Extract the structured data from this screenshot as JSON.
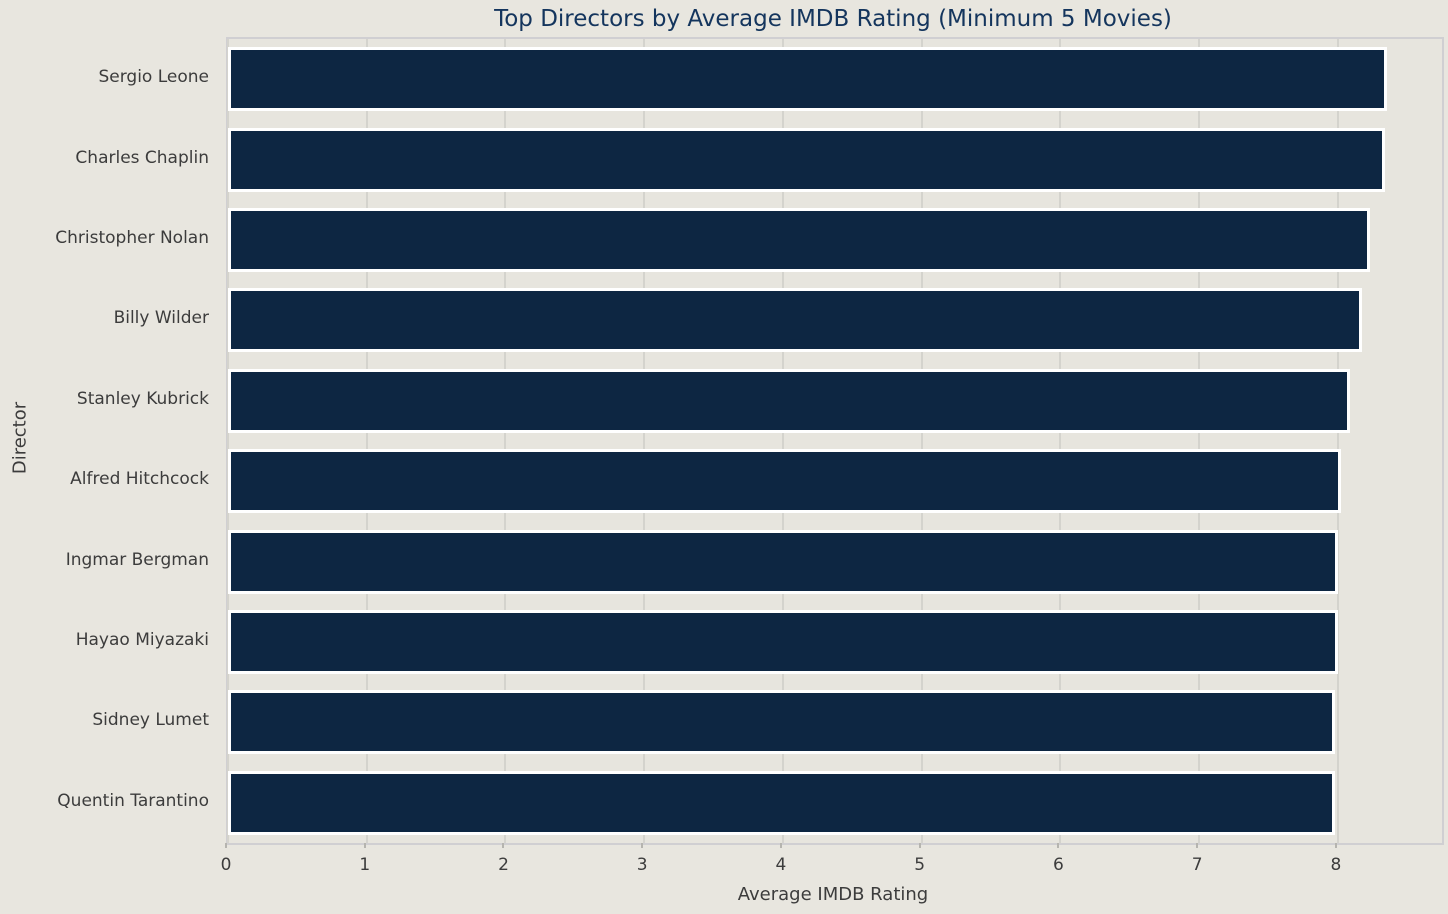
{
  "chart_data": {
    "type": "bar",
    "orientation": "horizontal",
    "title": "Top Directors by Average IMDB Rating (Minimum 5 Movies)",
    "xlabel": "Average IMDB Rating",
    "ylabel": "Director",
    "categories": [
      "Sergio Leone",
      "Charles Chaplin",
      "Christopher Nolan",
      "Billy Wilder",
      "Stanley Kubrick",
      "Alfred Hitchcock",
      "Ingmar Bergman",
      "Hayao Miyazaki",
      "Sidney Lumet",
      "Quentin Tarantino"
    ],
    "values": [
      8.35,
      8.34,
      8.23,
      8.17,
      8.09,
      8.02,
      8.0,
      8.0,
      7.98,
      7.98
    ],
    "xticks": [
      0,
      1,
      2,
      3,
      4,
      5,
      6,
      7,
      8
    ],
    "xlim": [
      0,
      8.75
    ],
    "grid": "vertical",
    "legend": "none",
    "colors": {
      "bar_fill": "#0d2642",
      "bar_edge": "#ffffff",
      "background": "#e8e6df",
      "plot_background": "#e7e5de",
      "gridline": "#d4d3cd",
      "axes_border": "#d0cfd2",
      "title_text": "#14355d",
      "label_text": "#3c3c3c"
    }
  }
}
